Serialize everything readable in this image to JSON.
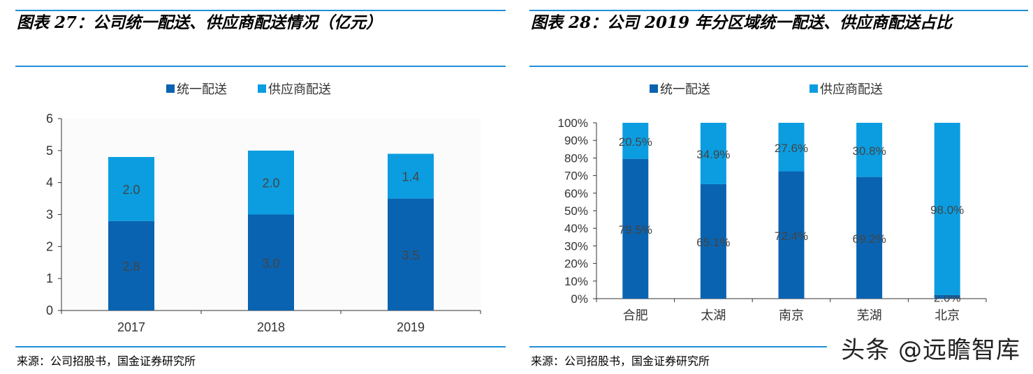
{
  "colors": {
    "dark": "#0a63b0",
    "light": "#0b9de0",
    "rule": "#1f8fd8"
  },
  "left": {
    "title": "图表 27：公司统一配送、供应商配送情况（亿元）",
    "source": "来源：公司招股书，国金证券研究所"
  },
  "right": {
    "title": "图表 28：公司 2019 年分区域统一配送、供应商配送占比",
    "source": "来源：公司招股书，国金证券研究所"
  },
  "watermark": "头条 @远瞻智库",
  "chart_data": [
    {
      "type": "bar",
      "stacked": true,
      "title": "图表 27：公司统一配送、供应商配送情况（亿元）",
      "categories": [
        "2017",
        "2018",
        "2019"
      ],
      "series": [
        {
          "name": "统一配送",
          "values": [
            2.8,
            3.0,
            3.5
          ],
          "labels": [
            "2.8",
            "3.0",
            "3.5"
          ]
        },
        {
          "name": "供应商配送",
          "values": [
            2.0,
            2.0,
            1.4
          ],
          "labels": [
            "2.0",
            "2.0",
            "1.4"
          ]
        }
      ],
      "ylim": [
        0,
        6
      ],
      "yticks": [
        "0",
        "1",
        "2",
        "3",
        "4",
        "5",
        "6"
      ],
      "legend": "top-center"
    },
    {
      "type": "bar",
      "stacked": true,
      "percent": true,
      "title": "图表 28：公司 2019 年分区域统一配送、供应商配送占比",
      "categories": [
        "合肥",
        "太湖",
        "南京",
        "芜湖",
        "北京"
      ],
      "series": [
        {
          "name": "统一配送",
          "values": [
            79.5,
            65.1,
            72.4,
            69.2,
            2.0
          ],
          "labels": [
            "79.5%",
            "65.1%",
            "72.4%",
            "69.2%",
            "2.0%"
          ]
        },
        {
          "name": "供应商配送",
          "values": [
            20.5,
            34.9,
            27.6,
            30.8,
            98.0
          ],
          "labels": [
            "20.5%",
            "34.9%",
            "27.6%",
            "30.8%",
            "98.0%"
          ]
        }
      ],
      "ylim": [
        0,
        100
      ],
      "yticks": [
        "0%",
        "10%",
        "20%",
        "30%",
        "40%",
        "50%",
        "60%",
        "70%",
        "80%",
        "90%",
        "100%"
      ],
      "legend": "top-center"
    }
  ]
}
